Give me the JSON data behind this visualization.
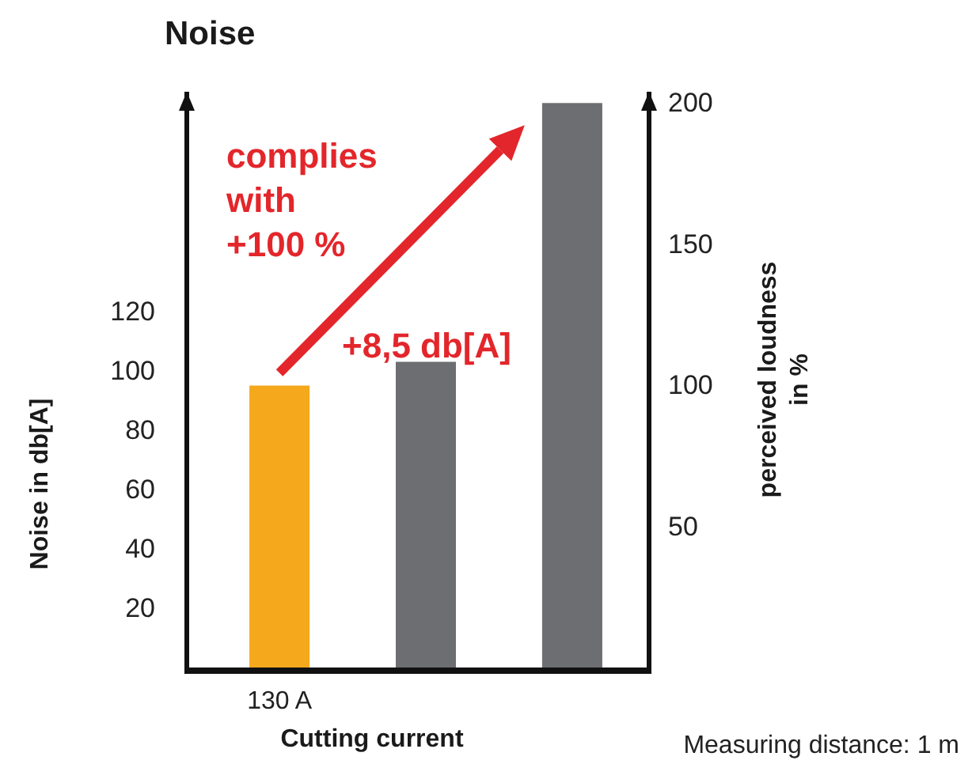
{
  "chart_data": {
    "type": "bar",
    "title": "Noise",
    "xlabel": "Cutting current",
    "ylabel": "Noise in db[A]",
    "y2label": "perceived loudness in %",
    "categories": [
      "130 A",
      null,
      null
    ],
    "series": [
      {
        "colors": [
          "#f5a81c",
          "#6d6e71",
          null
        ],
        "values": [
          95,
          103,
          null
        ]
      },
      {
        "color": "#6d6e71",
        "values": [
          null,
          null,
          200
        ],
        "axis": "y2"
      }
    ],
    "ylim": [
      0,
      194
    ],
    "yticks": [
      20,
      40,
      60,
      80,
      100,
      120
    ],
    "y2lim": [
      0,
      204
    ],
    "y2ticks": [
      50,
      100,
      150,
      200
    ],
    "grid": false,
    "annotations": [
      "complies\nwith\n+100 %",
      "+8,5 db[A]",
      "Measuring distance: 1 m"
    ]
  }
}
